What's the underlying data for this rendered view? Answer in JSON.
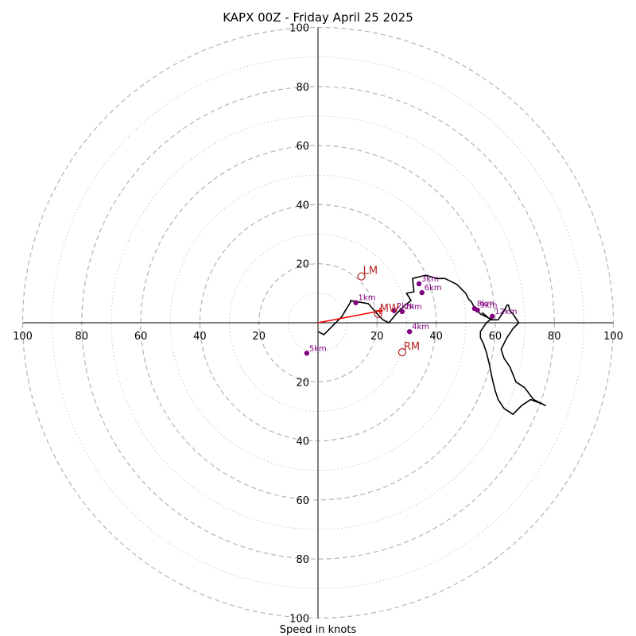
{
  "chart_data": {
    "type": "hodograph",
    "title": "KAPX 00Z - Friday April 25 2025",
    "xlabel": "Speed in knots",
    "max_speed": 100,
    "ring_major_step": 20,
    "ring_minor_step": 10,
    "x_ticks": [
      "100",
      "80",
      "60",
      "40",
      "20",
      "20",
      "40",
      "60",
      "80",
      "100"
    ],
    "y_ticks": [
      "100",
      "80",
      "60",
      "40",
      "20",
      "20",
      "40",
      "60",
      "80",
      "100"
    ],
    "hodograph_trace": [
      [
        0,
        -3
      ],
      [
        2,
        -4
      ],
      [
        5,
        -1
      ],
      [
        8,
        2
      ],
      [
        11,
        7
      ],
      [
        11,
        7.5
      ],
      [
        17,
        6.5
      ],
      [
        21,
        2
      ],
      [
        22,
        1
      ],
      [
        24,
        0
      ],
      [
        26.5,
        3
      ],
      [
        29.5,
        6
      ],
      [
        31.5,
        7.5
      ],
      [
        30,
        10
      ],
      [
        32.5,
        10.5
      ],
      [
        32,
        15
      ],
      [
        36,
        16
      ],
      [
        37,
        16
      ],
      [
        40,
        15
      ],
      [
        43,
        15
      ],
      [
        47,
        13
      ],
      [
        50,
        10
      ],
      [
        51,
        8
      ],
      [
        52,
        7
      ],
      [
        53,
        5
      ],
      [
        54,
        4
      ],
      [
        55,
        3
      ],
      [
        56,
        2.5
      ],
      [
        59,
        1
      ],
      [
        61,
        1
      ],
      [
        63,
        4
      ],
      [
        64,
        6
      ],
      [
        64.5,
        6
      ],
      [
        65,
        4
      ],
      [
        66,
        3
      ],
      [
        68,
        0
      ],
      [
        66,
        -2
      ],
      [
        64,
        -5
      ],
      [
        63.5,
        -6
      ],
      [
        63,
        -7
      ],
      [
        62,
        -9
      ],
      [
        63,
        -12
      ],
      [
        65,
        -15
      ],
      [
        67,
        -20
      ],
      [
        70,
        -22
      ],
      [
        73,
        -26
      ],
      [
        77,
        -28
      ],
      [
        76,
        -27.5
      ],
      [
        72,
        -26
      ],
      [
        69,
        -28
      ],
      [
        66,
        -31
      ],
      [
        63,
        -29
      ],
      [
        61,
        -26
      ],
      [
        60,
        -23
      ],
      [
        59,
        -19
      ],
      [
        58,
        -14
      ],
      [
        57,
        -10
      ],
      [
        56,
        -7
      ],
      [
        55,
        -5
      ],
      [
        55,
        -3
      ],
      [
        57,
        0
      ],
      [
        59,
        1.5
      ],
      [
        58.5,
        1
      ],
      [
        55.5,
        3.5
      ]
    ],
    "markers": [
      {
        "label": "1km",
        "u": 12.8,
        "v": 6.8
      },
      {
        "label": "2km",
        "u": 25.8,
        "v": 4.1
      },
      {
        "label": "2km",
        "u": 28.5,
        "v": 3.8
      },
      {
        "label": "3km",
        "u": 34.2,
        "v": 13.2
      },
      {
        "label": "6km",
        "u": 35.2,
        "v": 10.2
      },
      {
        "label": "4km",
        "u": 31,
        "v": -3
      },
      {
        "label": "8km",
        "u": 53,
        "v": 4.8
      },
      {
        "label": "9km",
        "u": 54,
        "v": 4.3
      },
      {
        "label": "12km",
        "u": 59,
        "v": 2.2
      },
      {
        "label": "5km",
        "u": -3.8,
        "v": -10.3
      }
    ],
    "motions": [
      {
        "label": "LM",
        "u": 14.7,
        "v": 15.7
      },
      {
        "label": "MW",
        "u": 20.4,
        "v": 3.0
      },
      {
        "label": "RM",
        "u": 28.5,
        "v": -10.0
      }
    ],
    "bunkers_vector": {
      "from": [
        0,
        0
      ],
      "to": [
        21,
        4
      ]
    },
    "colors": {
      "trace": "#000000",
      "marker": "#800080",
      "storm_motion": "#b22222",
      "vector": "#ff0000",
      "grid": "#b4b4b4"
    }
  }
}
